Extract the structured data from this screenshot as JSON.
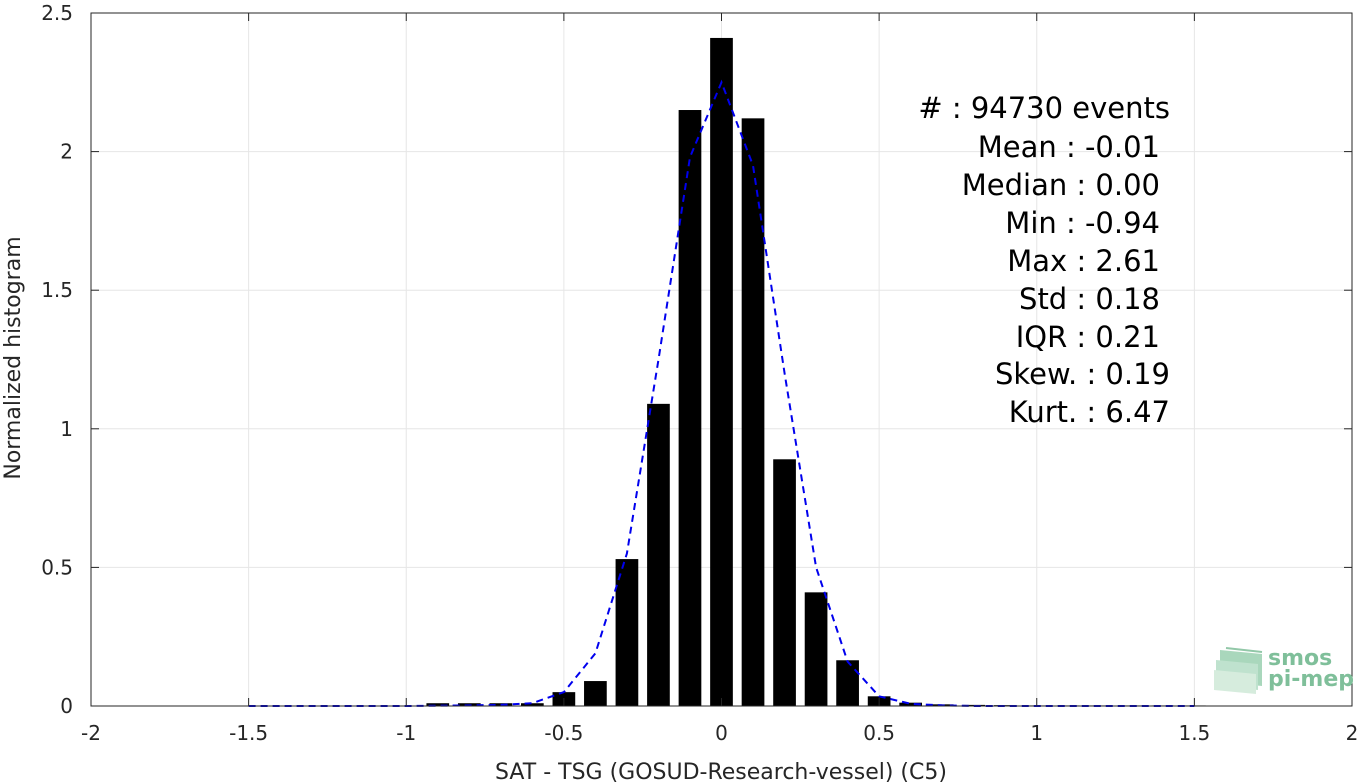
{
  "chart_data": {
    "type": "bar",
    "xlabel": "SAT - TSG (GOSUD-Research-vessel) (C5)",
    "ylabel": "Normalized histogram",
    "xlim": [
      -2,
      2
    ],
    "ylim": [
      0,
      2.5
    ],
    "xticks": [
      "-2",
      "-1.5",
      "-1",
      "-0.5",
      "0",
      "0.5",
      "1",
      "1.5",
      "2"
    ],
    "yticks": [
      "0",
      "0.5",
      "1",
      "1.5",
      "2",
      "2.5"
    ],
    "grid": true,
    "bar_color": "#000000",
    "series": [
      {
        "name": "histogram",
        "x": [
          -0.9,
          -0.8,
          -0.7,
          -0.6,
          -0.5,
          -0.4,
          -0.3,
          -0.2,
          -0.1,
          0.0,
          0.1,
          0.2,
          0.3,
          0.4,
          0.5,
          0.6,
          0.7,
          0.8,
          0.9,
          1.0,
          1.1,
          1.2,
          1.3,
          1.4,
          1.5
        ],
        "values": [
          0.01,
          0.01,
          0.01,
          0.01,
          0.05,
          0.09,
          0.53,
          1.09,
          2.15,
          2.41,
          2.12,
          0.89,
          0.41,
          0.165,
          0.035,
          0.012,
          0.006,
          0.004,
          0.003,
          0.002,
          0.002,
          0.002,
          0.002,
          0.002,
          0.002
        ]
      },
      {
        "type": "line",
        "style": "dashed",
        "color": "#0000ee",
        "x": [
          -1.5,
          -1.0,
          -0.8,
          -0.7,
          -0.6,
          -0.5,
          -0.4,
          -0.3,
          -0.2,
          -0.1,
          0.0,
          0.1,
          0.2,
          0.3,
          0.4,
          0.5,
          0.6,
          0.7,
          0.8,
          1.0,
          1.5
        ],
        "values": [
          0.0,
          0.0,
          0.002,
          0.004,
          0.01,
          0.05,
          0.19,
          0.55,
          1.25,
          1.98,
          2.25,
          1.95,
          1.2,
          0.5,
          0.16,
          0.035,
          0.008,
          0.002,
          0.0,
          0.0,
          0.0
        ]
      }
    ]
  },
  "stats": {
    "events": "#  : 94730 events",
    "mean": "Mean : -0.01",
    "median": "Median : 0.00",
    "min": "Min : -0.94",
    "max": "Max : 2.61",
    "std": "Std : 0.18",
    "iqr": "IQR : 0.21",
    "skew": "Skew. : 0.19",
    "kurt": "Kurt. : 6.47"
  },
  "logo": {
    "line1": "smos",
    "line2": "pi-mep",
    "color": "#7fbf9a"
  }
}
